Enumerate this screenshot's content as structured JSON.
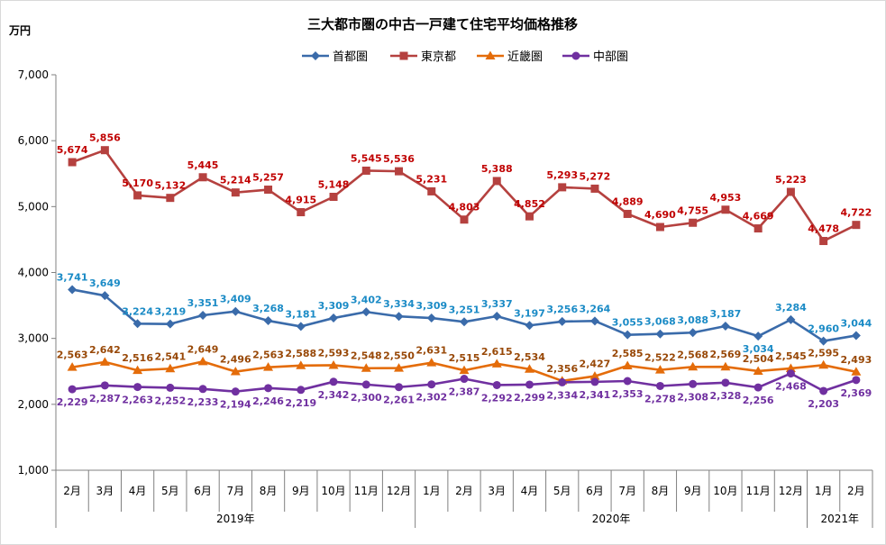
{
  "chart_data": {
    "type": "line",
    "title": "三大都市圏の中古一戸建て住宅平均価格推移",
    "ylabel": "万円",
    "ylim": [
      1000,
      7000
    ],
    "yticks": [
      "1,000",
      "2,000",
      "3,000",
      "4,000",
      "5,000",
      "6,000",
      "7,000"
    ],
    "ytick_values": [
      1000,
      2000,
      3000,
      4000,
      5000,
      6000,
      7000
    ],
    "categories": [
      "2月",
      "3月",
      "4月",
      "5月",
      "6月",
      "7月",
      "8月",
      "9月",
      "10月",
      "11月",
      "12月",
      "1月",
      "2月",
      "3月",
      "4月",
      "5月",
      "6月",
      "7月",
      "8月",
      "9月",
      "10月",
      "11月",
      "12月",
      "1月",
      "2月"
    ],
    "year_groups": [
      {
        "label": "2019年",
        "start": 0,
        "end": 10
      },
      {
        "label": "2020年",
        "start": 11,
        "end": 22
      },
      {
        "label": "2021年",
        "start": 23,
        "end": 24
      }
    ],
    "legend_position": "top-center",
    "grid": false,
    "series": [
      {
        "name": "首都圏",
        "color": "#3A6BAA",
        "label_color": "#1B8BC6",
        "marker": "diamond",
        "values": [
          3741,
          3649,
          3224,
          3219,
          3351,
          3409,
          3268,
          3181,
          3309,
          3402,
          3334,
          3309,
          3251,
          3337,
          3197,
          3256,
          3264,
          3055,
          3068,
          3088,
          3187,
          3034,
          3284,
          2960,
          3044
        ],
        "labels": [
          "3,741",
          "3,649",
          "3,224",
          "3,219",
          "3,351",
          "3,409",
          "3,268",
          "3,181",
          "3,309",
          "3,402",
          "3,334",
          "3,309",
          "3,251",
          "3,337",
          "3,197",
          "3,256",
          "3,264",
          "3,055",
          "3,068",
          "3,088",
          "3,187",
          "3,034",
          "3,284",
          "2,960",
          "3,044"
        ],
        "label_pos": [
          "above",
          "above",
          "above",
          "above",
          "above",
          "above",
          "above",
          "above",
          "above",
          "above",
          "above",
          "above",
          "above",
          "above",
          "above",
          "above",
          "above",
          "above",
          "above",
          "above",
          "above",
          "below",
          "above",
          "above",
          "above"
        ]
      },
      {
        "name": "東京都",
        "color": "#B5413F",
        "label_color": "#C00000",
        "marker": "square",
        "values": [
          5674,
          5856,
          5170,
          5132,
          5445,
          5214,
          5257,
          4915,
          5148,
          5545,
          5536,
          5231,
          4803,
          5388,
          4852,
          5293,
          5272,
          4889,
          4690,
          4755,
          4953,
          4669,
          5223,
          4478,
          4722
        ],
        "labels": [
          "5,674",
          "5,856",
          "5,170",
          "5,132",
          "5,445",
          "5,214",
          "5,257",
          "4,915",
          "5,148",
          "5,545",
          "5,536",
          "5,231",
          "4,803",
          "5,388",
          "4,852",
          "5,293",
          "5,272",
          "4,889",
          "4,690",
          "4,755",
          "4,953",
          "4,669",
          "5,223",
          "4,478",
          "4,722"
        ],
        "label_pos": [
          "above",
          "above",
          "above",
          "above",
          "above",
          "above",
          "above",
          "above",
          "above",
          "above",
          "above",
          "above",
          "above",
          "above",
          "above",
          "above",
          "above",
          "above",
          "above",
          "above",
          "above",
          "above",
          "above",
          "above",
          "above"
        ]
      },
      {
        "name": "近畿圏",
        "color": "#E46C0A",
        "label_color": "#984807",
        "marker": "triangle",
        "values": [
          2563,
          2642,
          2516,
          2541,
          2649,
          2496,
          2563,
          2588,
          2593,
          2548,
          2550,
          2631,
          2515,
          2615,
          2534,
          2356,
          2427,
          2585,
          2522,
          2568,
          2569,
          2504,
          2545,
          2595,
          2493
        ],
        "labels": [
          "2,563",
          "2,642",
          "2,516",
          "2,541",
          "2,649",
          "2,496",
          "2,563",
          "2,588",
          "2,593",
          "2,548",
          "2,550",
          "2,631",
          "2,515",
          "2,615",
          "2,534",
          "2,356",
          "2,427",
          "2,585",
          "2,522",
          "2,568",
          "2,569",
          "2,504",
          "2,545",
          "2,595",
          "2,493"
        ],
        "label_pos": [
          "above",
          "above",
          "above",
          "above",
          "above",
          "above",
          "above",
          "above",
          "above",
          "above",
          "above",
          "above",
          "above",
          "above",
          "above",
          "above",
          "above",
          "above",
          "above",
          "above",
          "above",
          "above",
          "above",
          "above",
          "above"
        ]
      },
      {
        "name": "中部圏",
        "color": "#7030A0",
        "label_color": "#7030A0",
        "marker": "circle",
        "values": [
          2229,
          2287,
          2263,
          2252,
          2233,
          2194,
          2246,
          2219,
          2342,
          2300,
          2261,
          2302,
          2387,
          2292,
          2299,
          2334,
          2341,
          2353,
          2278,
          2308,
          2328,
          2256,
          2468,
          2203,
          2369
        ],
        "labels": [
          "2,229",
          "2,287",
          "2,263",
          "2,252",
          "2,233",
          "2,194",
          "2,246",
          "2,219",
          "2,342",
          "2,300",
          "2,261",
          "2,302",
          "2,387",
          "2,292",
          "2,299",
          "2,334",
          "2,341",
          "2,353",
          "2,278",
          "2,308",
          "2,328",
          "2,256",
          "2,468",
          "2,203",
          "2,369"
        ],
        "label_pos": [
          "below",
          "below",
          "below",
          "below",
          "below",
          "below",
          "below",
          "below",
          "below",
          "below",
          "below",
          "below",
          "below",
          "below",
          "below",
          "below",
          "below",
          "below",
          "below",
          "below",
          "below",
          "below",
          "below",
          "below",
          "below"
        ]
      }
    ]
  }
}
